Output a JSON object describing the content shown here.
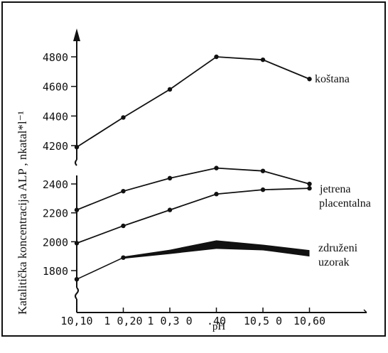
{
  "chart_data": {
    "type": "line",
    "title": "",
    "xlabel": "pH",
    "ylabel": "Katalitička koncentracija ALP , nkatal*l⁻¹",
    "x": [
      10.1,
      10.2,
      10.3,
      10.4,
      10.5,
      10.6
    ],
    "x_tick_labels": [
      "10,10",
      "1 0,20",
      "1 0,3 0",
      ".40",
      "10,5 0",
      "10,60"
    ],
    "upper_panel": {
      "y_ticks": [
        4200,
        4400,
        4600,
        4800
      ],
      "ylim": [
        4100,
        4900
      ]
    },
    "lower_panel": {
      "y_ticks": [
        1800,
        2000,
        2200,
        2400
      ],
      "ylim": [
        1650,
        2500
      ]
    },
    "series": [
      {
        "name": "koštana",
        "panel": "upper",
        "values": [
          4190,
          4390,
          4580,
          4800,
          4780,
          4650
        ]
      },
      {
        "name": "jetrena",
        "panel": "lower",
        "values": [
          2220,
          2350,
          2440,
          2510,
          2490,
          2400
        ]
      },
      {
        "name": "placentalna",
        "panel": "lower",
        "values": [
          1990,
          2110,
          2220,
          2330,
          2360,
          2370
        ]
      },
      {
        "name": "združeni uzorak",
        "panel": "lower",
        "values": [
          1740,
          1890,
          1930,
          1980,
          1960,
          1920
        ]
      }
    ],
    "legend_lines": {
      "kostana": [
        "koštana"
      ],
      "jetrena": [
        "jetrena"
      ],
      "placentalna": [
        "placentalna"
      ],
      "zdruzeni": [
        "združeni",
        "uzorak"
      ]
    },
    "colors": {
      "line": "#111111",
      "background": "#ffffff"
    }
  }
}
